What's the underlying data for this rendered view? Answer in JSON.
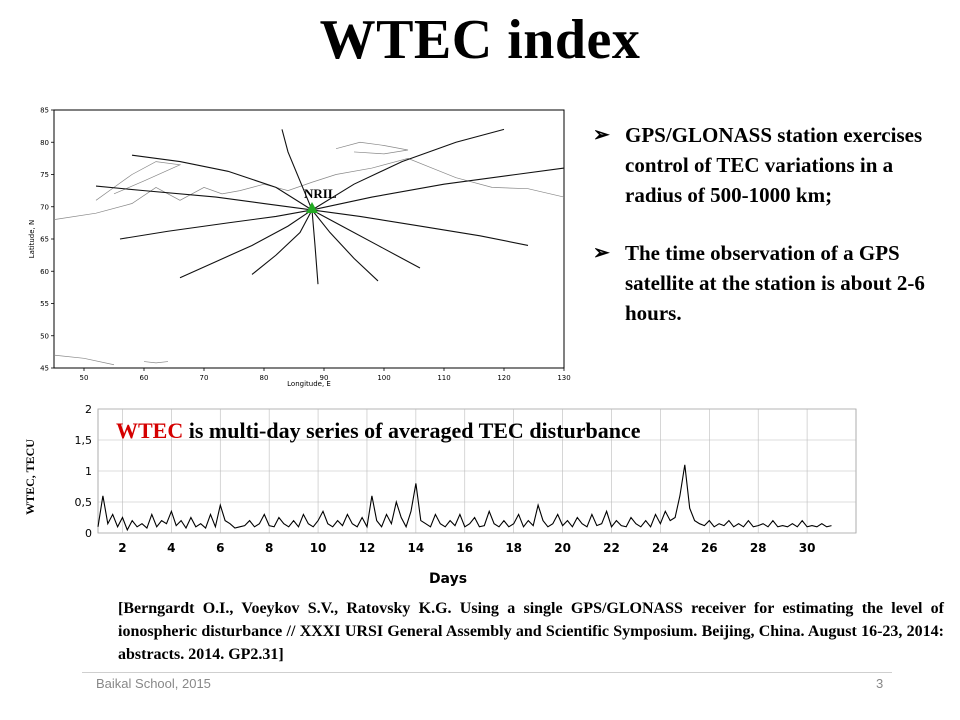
{
  "title": "WTEC index",
  "bullets": [
    "GPS/GLONASS station exercises control of TEC variations in a radius of 500-1000 km;",
    "The time observation of a GPS satellite at the station is about 2-6 hours."
  ],
  "caption": {
    "highlight": "WTEC",
    "rest": " is multi-day series of averaged TEC disturbance"
  },
  "reference": "[Berngardt O.I., Voeykov S.V., Ratovsky K.G. Using a single GPS/GLONASS receiver for estimating the level of ionospheric disturbance // XXXI URSI General Assembly and Scientific Symposium. Beijing, China. August 16-23, 2014: abstracts. 2014. GP2.31]",
  "footer": {
    "left": "Baikal School, 2015",
    "page": "3"
  },
  "colors": {
    "caption_highlight": "#d40000",
    "station_marker": "#22aa22"
  },
  "chart_data": [
    {
      "type": "line",
      "title": "",
      "xlabel": "Longitude, E",
      "ylabel": "Latitude, N",
      "xlim": [
        45,
        130
      ],
      "ylim": [
        45,
        85
      ],
      "xticks": [
        50,
        60,
        70,
        80,
        90,
        100,
        110,
        120,
        130
      ],
      "yticks": [
        45,
        50,
        55,
        60,
        65,
        70,
        75,
        80,
        85
      ],
      "annotations": [
        {
          "text": "NRIL",
          "lon": 88,
          "lat": 69.5
        }
      ],
      "series": [
        {
          "x": [
            88,
            80,
            72,
            60,
            52
          ],
          "y": [
            69.5,
            70.5,
            71.5,
            72.5,
            73.2
          ]
        },
        {
          "x": [
            88,
            82,
            74,
            64,
            56
          ],
          "y": [
            69.5,
            68.5,
            67.5,
            66.2,
            65
          ]
        },
        {
          "x": [
            88,
            84,
            78,
            72,
            66
          ],
          "y": [
            69.5,
            67,
            64,
            61.5,
            59
          ]
        },
        {
          "x": [
            88,
            86,
            82,
            78
          ],
          "y": [
            69.5,
            66,
            62.5,
            59.5
          ]
        },
        {
          "x": [
            88,
            88.5,
            89
          ],
          "y": [
            69.5,
            64,
            58
          ]
        },
        {
          "x": [
            88,
            91,
            95,
            99
          ],
          "y": [
            69.5,
            66,
            62,
            58.5
          ]
        },
        {
          "x": [
            88,
            93,
            99,
            106
          ],
          "y": [
            69.5,
            67,
            64,
            60.5
          ]
        },
        {
          "x": [
            88,
            96,
            106,
            116,
            124
          ],
          "y": [
            69.5,
            68.5,
            67,
            65.5,
            64
          ]
        },
        {
          "x": [
            88,
            98,
            110,
            122,
            130
          ],
          "y": [
            69.5,
            71.5,
            73.5,
            75,
            76
          ]
        },
        {
          "x": [
            88,
            95,
            103,
            112,
            120
          ],
          "y": [
            69.5,
            73.5,
            77,
            80,
            82
          ]
        },
        {
          "x": [
            88,
            86,
            84,
            83
          ],
          "y": [
            69.5,
            74,
            78.5,
            82
          ]
        },
        {
          "x": [
            88,
            82,
            74,
            66,
            58
          ],
          "y": [
            69.5,
            73,
            75.5,
            77,
            78
          ]
        }
      ]
    },
    {
      "type": "line",
      "title": "",
      "xlabel": "Days",
      "ylabel": "WTEC, TECU",
      "xlim": [
        1,
        32
      ],
      "ylim": [
        0,
        2
      ],
      "xticks": [
        2,
        4,
        6,
        8,
        10,
        12,
        14,
        16,
        18,
        20,
        22,
        24,
        26,
        28,
        30
      ],
      "yticks": [
        0,
        0.5,
        1,
        1.5,
        2
      ],
      "ytick_labels": [
        "0",
        "0,5",
        "1",
        "1,5",
        "2"
      ],
      "grid": true,
      "series": [
        {
          "x": [
            1.0,
            1.2,
            1.4,
            1.6,
            1.8,
            2.0,
            2.2,
            2.4,
            2.6,
            2.8,
            3.0,
            3.2,
            3.4,
            3.6,
            3.8,
            4.0,
            4.2,
            4.4,
            4.6,
            4.8,
            5.0,
            5.2,
            5.4,
            5.6,
            5.8,
            6.0,
            6.2,
            6.4,
            6.6,
            6.8,
            7.0,
            7.2,
            7.4,
            7.6,
            7.8,
            8.0,
            8.2,
            8.4,
            8.6,
            8.8,
            9.0,
            9.2,
            9.4,
            9.6,
            9.8,
            10.0,
            10.2,
            10.4,
            10.6,
            10.8,
            11.0,
            11.2,
            11.4,
            11.6,
            11.8,
            12.0,
            12.2,
            12.4,
            12.6,
            12.8,
            13.0,
            13.2,
            13.4,
            13.6,
            13.8,
            14.0,
            14.2,
            14.4,
            14.6,
            14.8,
            15.0,
            15.2,
            15.4,
            15.6,
            15.8,
            16.0,
            16.2,
            16.4,
            16.6,
            16.8,
            17.0,
            17.2,
            17.4,
            17.6,
            17.8,
            18.0,
            18.2,
            18.4,
            18.6,
            18.8,
            19.0,
            19.2,
            19.4,
            19.6,
            19.8,
            20.0,
            20.2,
            20.4,
            20.6,
            20.8,
            21.0,
            21.2,
            21.4,
            21.6,
            21.8,
            22.0,
            22.2,
            22.4,
            22.6,
            22.8,
            23.0,
            23.2,
            23.4,
            23.6,
            23.8,
            24.0,
            24.2,
            24.4,
            24.6,
            24.8,
            25.0,
            25.2,
            25.4,
            25.6,
            25.8,
            26.0,
            26.2,
            26.4,
            26.6,
            26.8,
            27.0,
            27.2,
            27.4,
            27.6,
            27.8,
            28.0,
            28.2,
            28.4,
            28.6,
            28.8,
            29.0,
            29.2,
            29.4,
            29.6,
            29.8,
            30.0,
            30.2,
            30.4,
            30.6,
            30.8,
            31.0
          ],
          "y": [
            0.1,
            0.6,
            0.15,
            0.3,
            0.1,
            0.25,
            0.05,
            0.2,
            0.1,
            0.15,
            0.08,
            0.3,
            0.1,
            0.2,
            0.15,
            0.35,
            0.12,
            0.2,
            0.08,
            0.25,
            0.1,
            0.15,
            0.08,
            0.3,
            0.1,
            0.45,
            0.2,
            0.15,
            0.08,
            0.1,
            0.12,
            0.2,
            0.1,
            0.15,
            0.3,
            0.12,
            0.1,
            0.25,
            0.15,
            0.1,
            0.2,
            0.1,
            0.3,
            0.15,
            0.1,
            0.2,
            0.35,
            0.15,
            0.1,
            0.2,
            0.12,
            0.3,
            0.15,
            0.1,
            0.25,
            0.1,
            0.6,
            0.2,
            0.1,
            0.3,
            0.15,
            0.5,
            0.25,
            0.1,
            0.35,
            0.8,
            0.2,
            0.15,
            0.1,
            0.3,
            0.15,
            0.1,
            0.2,
            0.12,
            0.3,
            0.1,
            0.15,
            0.25,
            0.1,
            0.12,
            0.35,
            0.15,
            0.1,
            0.2,
            0.1,
            0.15,
            0.3,
            0.1,
            0.2,
            0.12,
            0.45,
            0.2,
            0.1,
            0.15,
            0.3,
            0.12,
            0.2,
            0.1,
            0.25,
            0.15,
            0.1,
            0.3,
            0.12,
            0.15,
            0.35,
            0.1,
            0.2,
            0.12,
            0.1,
            0.25,
            0.15,
            0.1,
            0.2,
            0.1,
            0.3,
            0.15,
            0.35,
            0.2,
            0.25,
            0.6,
            1.1,
            0.4,
            0.2,
            0.15,
            0.12,
            0.2,
            0.1,
            0.15,
            0.12,
            0.2,
            0.1,
            0.15,
            0.1,
            0.2,
            0.1,
            0.12,
            0.15,
            0.1,
            0.2,
            0.1,
            0.12,
            0.1,
            0.15,
            0.1,
            0.2,
            0.1,
            0.12,
            0.1,
            0.15,
            0.1,
            0.12
          ]
        }
      ]
    }
  ]
}
